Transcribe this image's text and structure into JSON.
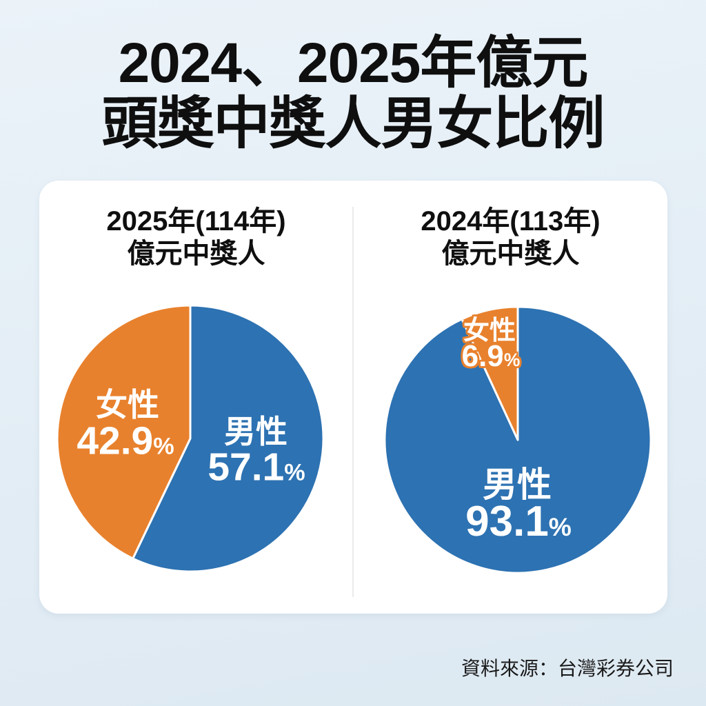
{
  "page": {
    "title_line1": "2024、2025年億元",
    "title_line2": "頭獎中獎人男女比例",
    "source": "資料來源：台灣彩券公司",
    "background_color": "#E3EDF5",
    "card_color": "#FFFFFF"
  },
  "colors": {
    "male_blue": "#2D72B2",
    "female_orange": "#E8812D",
    "title_text": "#0F0F0F",
    "source_text": "#191919",
    "divider": "#EAEAEA",
    "slice_label_text": "#FFFFFF"
  },
  "chart_data": [
    {
      "type": "pie",
      "title_line1": "2025年(114年)",
      "title_line2": "億元中獎人",
      "legend_position": "none",
      "start_angle_deg": 0,
      "direction": "clockwise",
      "slices": [
        {
          "label": "男性",
          "value": 57.1,
          "value_text": "57.1",
          "unit": "%",
          "color": "#2D72B2"
        },
        {
          "label": "女性",
          "value": 42.9,
          "value_text": "42.9",
          "unit": "%",
          "color": "#E8812D"
        }
      ]
    },
    {
      "type": "pie",
      "title_line1": "2024年(113年)",
      "title_line2": "億元中獎人",
      "legend_position": "none",
      "start_angle_deg": 0,
      "direction": "clockwise",
      "slices": [
        {
          "label": "男性",
          "value": 93.1,
          "value_text": "93.1",
          "unit": "%",
          "color": "#2D72B2"
        },
        {
          "label": "女性",
          "value": 6.9,
          "value_text": "6.9",
          "unit": "%",
          "color": "#E8812D"
        }
      ]
    }
  ]
}
